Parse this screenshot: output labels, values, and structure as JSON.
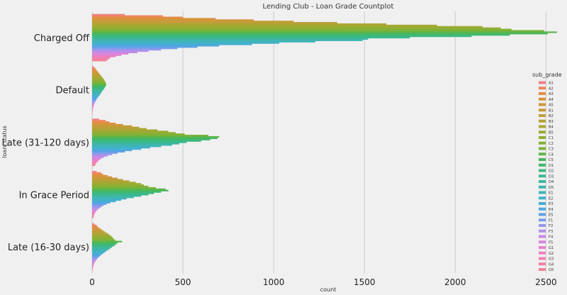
{
  "chart_data": {
    "type": "bar",
    "orientation": "horizontal",
    "title": "Lending Club - Loan Grade Countplot",
    "xlabel": "count",
    "ylabel": "loan_status",
    "xlim": [
      0,
      2600
    ],
    "xticks": [
      0,
      500,
      1000,
      1500,
      2000,
      2500
    ],
    "grid": true,
    "legend_title": "sub_grade",
    "legend_position": "right",
    "categories": [
      "Charged Off",
      "Default",
      "Late (31-120 days)",
      "In Grace Period",
      "Late (16-30 days)"
    ],
    "series": [
      {
        "name": "A1",
        "color": "#f07f8a",
        "values": [
          180,
          10,
          40,
          25,
          12
        ]
      },
      {
        "name": "A2",
        "color": "#ef8561",
        "values": [
          390,
          18,
          75,
          50,
          25
        ]
      },
      {
        "name": "A3",
        "color": "#e58c47",
        "values": [
          500,
          22,
          95,
          60,
          30
        ]
      },
      {
        "name": "A4",
        "color": "#db913d",
        "values": [
          680,
          28,
          130,
          85,
          40
        ]
      },
      {
        "name": "A5",
        "color": "#d0963a",
        "values": [
          890,
          34,
          170,
          110,
          50
        ]
      },
      {
        "name": "B1",
        "color": "#c69a38",
        "values": [
          1110,
          40,
          220,
          140,
          62
        ]
      },
      {
        "name": "B2",
        "color": "#bc9f37",
        "values": [
          1350,
          46,
          260,
          170,
          72
        ]
      },
      {
        "name": "B3",
        "color": "#b2a336",
        "values": [
          1620,
          52,
          300,
          205,
          85
        ]
      },
      {
        "name": "B4",
        "color": "#a8a734",
        "values": [
          1900,
          58,
          360,
          240,
          95
        ]
      },
      {
        "name": "B5",
        "color": "#9daa33",
        "values": [
          2150,
          64,
          420,
          270,
          105
        ]
      },
      {
        "name": "C1",
        "color": "#92ad34",
        "values": [
          2250,
          68,
          460,
          285,
          112
        ]
      },
      {
        "name": "C2",
        "color": "#85b035",
        "values": [
          2310,
          72,
          510,
          310,
          118
        ]
      },
      {
        "name": "C3",
        "color": "#78b338",
        "values": [
          2490,
          76,
          640,
          350,
          128
        ]
      },
      {
        "name": "C4",
        "color": "#5fb649",
        "values": [
          2560,
          78,
          700,
          405,
          165
        ]
      },
      {
        "name": "C5",
        "color": "#4ab75a",
        "values": [
          2510,
          75,
          690,
          420,
          140
        ]
      },
      {
        "name": "D1",
        "color": "#3fb86f",
        "values": [
          2300,
          70,
          650,
          380,
          130
        ]
      },
      {
        "name": "D2",
        "color": "#3cb880",
        "values": [
          2090,
          66,
          600,
          340,
          122
        ]
      },
      {
        "name": "D3",
        "color": "#3cb890",
        "values": [
          1750,
          60,
          520,
          310,
          110
        ]
      },
      {
        "name": "D4",
        "color": "#3db79f",
        "values": [
          1520,
          55,
          480,
          270,
          100
        ]
      },
      {
        "name": "D5",
        "color": "#3eb6ad",
        "values": [
          1490,
          50,
          440,
          230,
          90
        ]
      },
      {
        "name": "E1",
        "color": "#3fb4bb",
        "values": [
          1230,
          45,
          380,
          190,
          78
        ]
      },
      {
        "name": "E2",
        "color": "#41b1c8",
        "values": [
          1030,
          40,
          320,
          160,
          68
        ]
      },
      {
        "name": "E3",
        "color": "#45add4",
        "values": [
          880,
          34,
          270,
          130,
          58
        ]
      },
      {
        "name": "E4",
        "color": "#4ea8de",
        "values": [
          700,
          28,
          220,
          100,
          48
        ]
      },
      {
        "name": "E5",
        "color": "#5da2e6",
        "values": [
          580,
          24,
          180,
          80,
          40
        ]
      },
      {
        "name": "F1",
        "color": "#7a9deb",
        "values": [
          470,
          20,
          140,
          62,
          32
        ]
      },
      {
        "name": "F2",
        "color": "#9897ec",
        "values": [
          380,
          16,
          110,
          50,
          26
        ]
      },
      {
        "name": "F3",
        "color": "#b290ea",
        "values": [
          310,
          13,
          85,
          40,
          20
        ]
      },
      {
        "name": "F4",
        "color": "#c78ae5",
        "values": [
          250,
          10,
          65,
          30,
          16
        ]
      },
      {
        "name": "F5",
        "color": "#d885dc",
        "values": [
          200,
          8,
          50,
          24,
          12
        ]
      },
      {
        "name": "G1",
        "color": "#e481d1",
        "values": [
          160,
          6,
          40,
          18,
          9
        ]
      },
      {
        "name": "G2",
        "color": "#ec80c3",
        "values": [
          130,
          5,
          32,
          14,
          7
        ]
      },
      {
        "name": "G3",
        "color": "#f080b4",
        "values": [
          100,
          4,
          25,
          11,
          5
        ]
      },
      {
        "name": "G4",
        "color": "#f281a5",
        "values": [
          90,
          3,
          20,
          9,
          4
        ]
      },
      {
        "name": "G5",
        "color": "#f28396",
        "values": [
          80,
          2,
          16,
          7,
          3
        ]
      }
    ]
  }
}
